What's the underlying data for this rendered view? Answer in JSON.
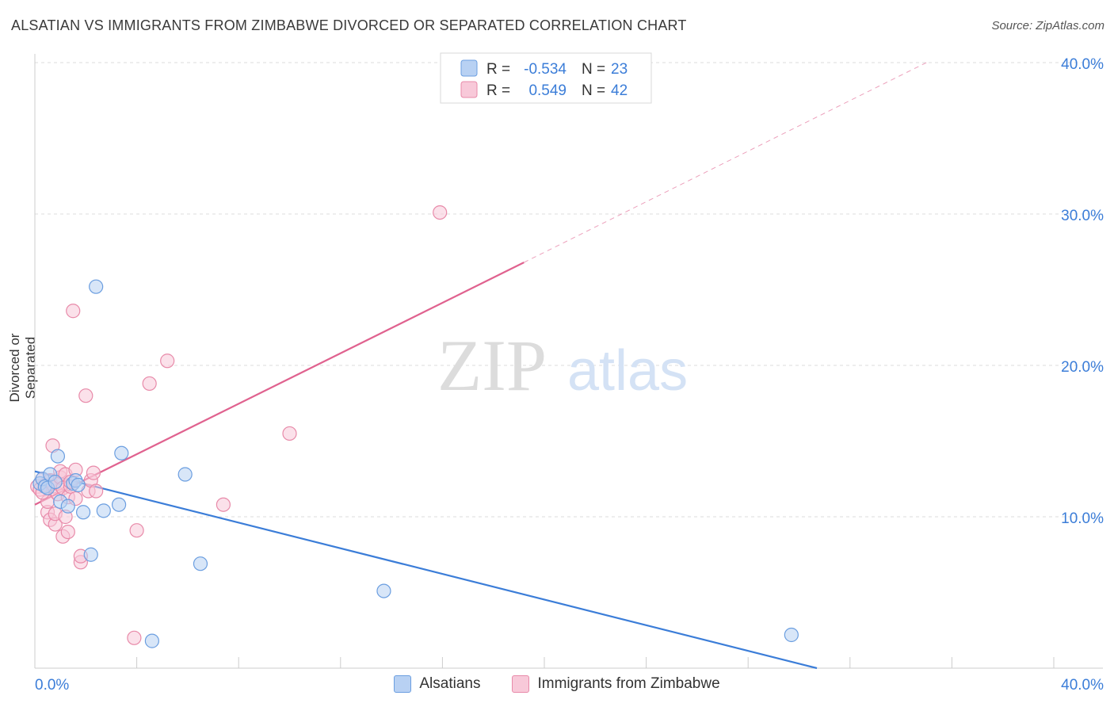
{
  "title": "ALSATIAN VS IMMIGRANTS FROM ZIMBABWE DIVORCED OR SEPARATED CORRELATION CHART",
  "source": "Source: ZipAtlas.com",
  "watermark": {
    "zip": "ZIP",
    "atlas": "atlas"
  },
  "chart_data": {
    "type": "scatter",
    "title": "ALSATIAN VS IMMIGRANTS FROM ZIMBABWE DIVORCED OR SEPARATED CORRELATION CHART",
    "xlabel": "",
    "ylabel": "Divorced or Separated",
    "xlim": [
      0,
      40
    ],
    "ylim": [
      0,
      40
    ],
    "x_tick_labels": [
      "0.0%",
      "40.0%"
    ],
    "y_ticks": [
      10,
      20,
      30,
      40
    ],
    "y_tick_labels": [
      "10.0%",
      "20.0%",
      "30.0%",
      "40.0%"
    ],
    "grid": true,
    "legend": {
      "position": "top-center",
      "entries": [
        {
          "r_label": "R =",
          "r_value": "-0.534",
          "n_label": "N =",
          "n_value": "23"
        },
        {
          "r_label": "R =",
          "r_value": "0.549",
          "n_label": "N =",
          "n_value": "42"
        }
      ]
    },
    "series": [
      {
        "name": "Alsatians",
        "color": "#6b9ee0",
        "fill": "#b8d1f3",
        "line_color": "#3b7dd8",
        "trend": {
          "x0": 0,
          "y0": 13.0,
          "x1": 30.7,
          "y1": 0.0
        },
        "points": [
          [
            0.2,
            12.2
          ],
          [
            0.3,
            12.5
          ],
          [
            0.4,
            12.0
          ],
          [
            0.5,
            11.9
          ],
          [
            0.6,
            12.8
          ],
          [
            0.8,
            12.3
          ],
          [
            0.9,
            14.0
          ],
          [
            1.0,
            11.0
          ],
          [
            1.3,
            10.7
          ],
          [
            1.5,
            12.2
          ],
          [
            1.6,
            12.4
          ],
          [
            1.7,
            12.1
          ],
          [
            1.9,
            10.3
          ],
          [
            2.2,
            7.5
          ],
          [
            2.4,
            25.2
          ],
          [
            2.7,
            10.4
          ],
          [
            3.3,
            10.8
          ],
          [
            3.4,
            14.2
          ],
          [
            4.6,
            1.8
          ],
          [
            5.9,
            12.8
          ],
          [
            6.5,
            6.9
          ],
          [
            13.7,
            5.1
          ],
          [
            29.7,
            2.2
          ]
        ]
      },
      {
        "name": "Immigrants from Zimbabwe",
        "color": "#e88aa9",
        "fill": "#f8c9d9",
        "line_color": "#e0628f",
        "trend": {
          "x0": 0,
          "y0": 10.8,
          "x1": 19.2,
          "y1": 26.8
        },
        "trend_dashed": {
          "x0": 19.2,
          "y0": 26.8,
          "x1": 35.0,
          "y1": 40.0
        },
        "points": [
          [
            0.1,
            12.0
          ],
          [
            0.2,
            11.8
          ],
          [
            0.3,
            12.5
          ],
          [
            0.4,
            12.1
          ],
          [
            0.5,
            10.3
          ],
          [
            0.5,
            11.0
          ],
          [
            0.6,
            12.4
          ],
          [
            0.6,
            9.8
          ],
          [
            0.7,
            12.0
          ],
          [
            0.7,
            14.7
          ],
          [
            0.8,
            9.5
          ],
          [
            0.8,
            10.2
          ],
          [
            0.9,
            11.5
          ],
          [
            0.9,
            12.2
          ],
          [
            1.0,
            12.6
          ],
          [
            1.0,
            13.0
          ],
          [
            1.1,
            11.9
          ],
          [
            1.1,
            8.7
          ],
          [
            1.2,
            10.0
          ],
          [
            1.2,
            12.8
          ],
          [
            1.3,
            9.0
          ],
          [
            1.3,
            11.3
          ],
          [
            1.4,
            12.0
          ],
          [
            1.4,
            12.3
          ],
          [
            1.5,
            23.6
          ],
          [
            1.6,
            11.2
          ],
          [
            1.6,
            13.1
          ],
          [
            1.8,
            7.0
          ],
          [
            1.8,
            7.4
          ],
          [
            2.0,
            18.0
          ],
          [
            2.1,
            11.7
          ],
          [
            2.2,
            12.4
          ],
          [
            2.3,
            12.9
          ],
          [
            2.4,
            11.7
          ],
          [
            3.9,
            2.0
          ],
          [
            4.0,
            9.1
          ],
          [
            4.5,
            18.8
          ],
          [
            5.2,
            20.3
          ],
          [
            7.4,
            10.8
          ],
          [
            10.0,
            15.5
          ],
          [
            15.9,
            30.1
          ],
          [
            0.3,
            11.6
          ]
        ]
      }
    ]
  },
  "bottom_legend": [
    {
      "label": "Alsatians"
    },
    {
      "label": "Immigrants from Zimbabwe"
    }
  ]
}
